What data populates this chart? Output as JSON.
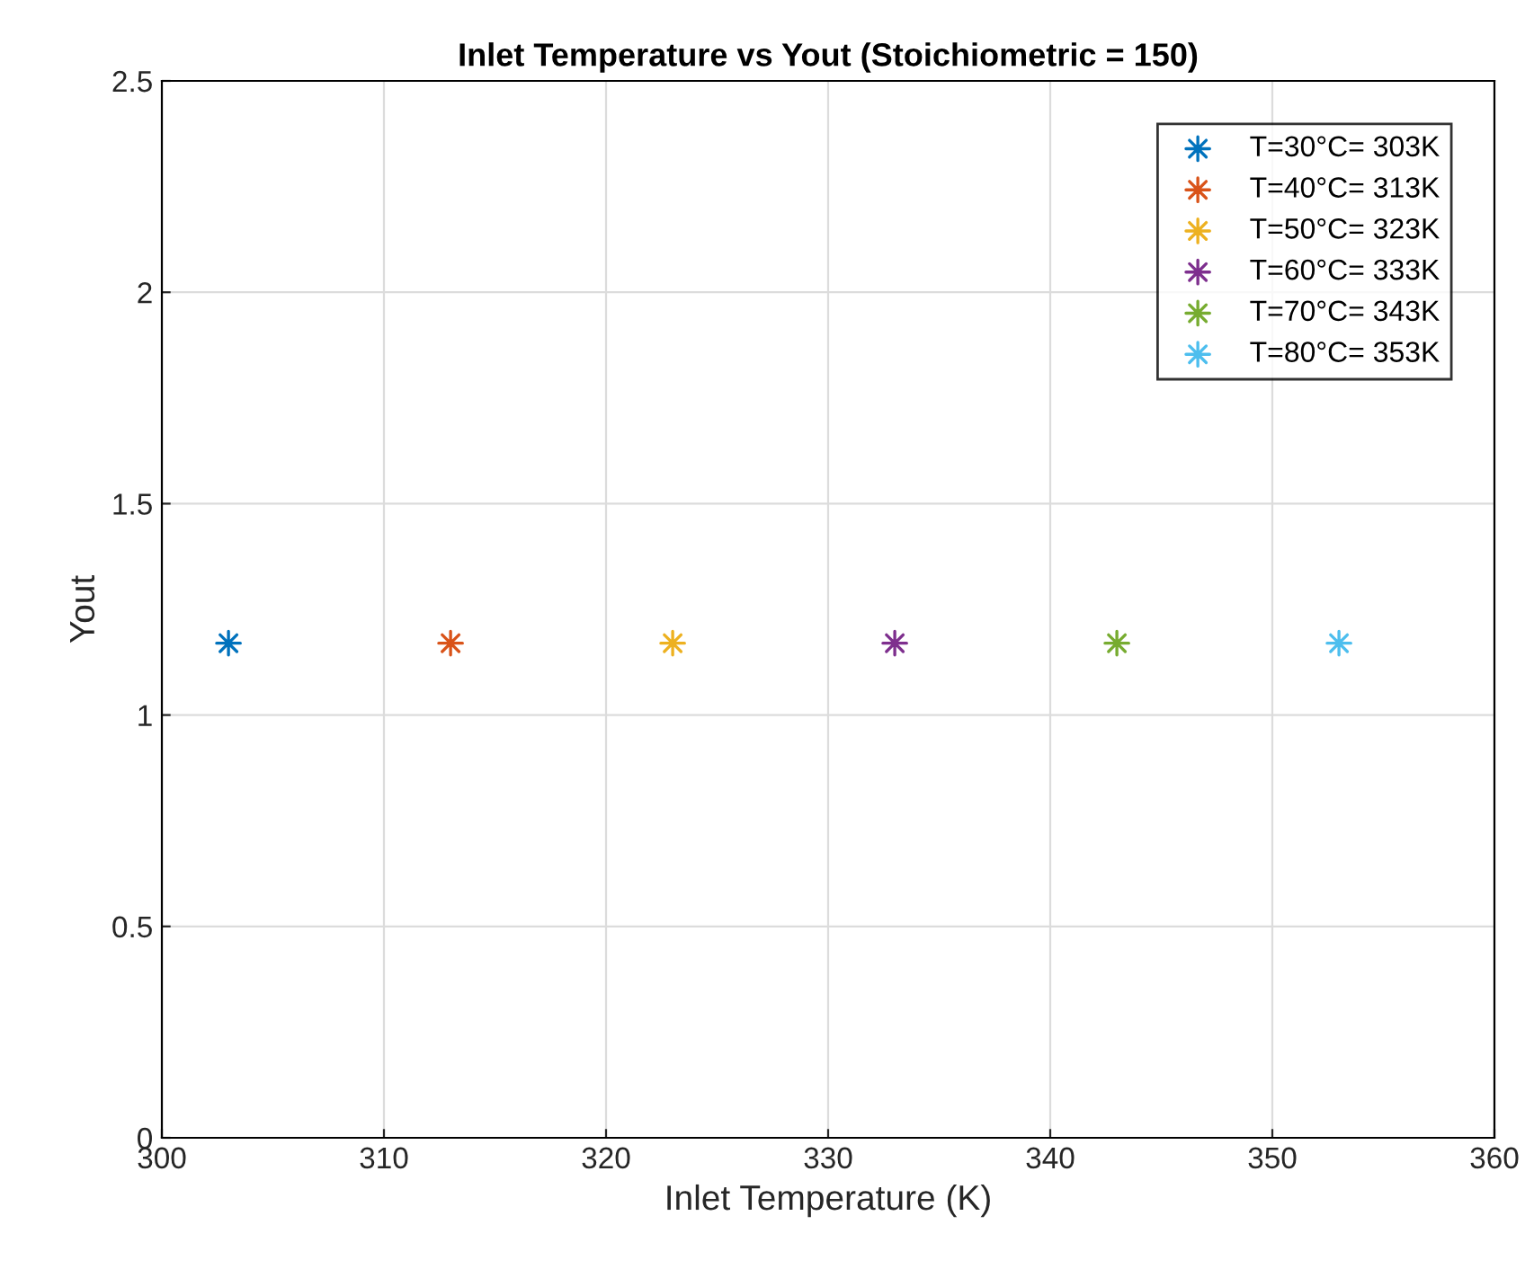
{
  "chart_data": {
    "type": "scatter",
    "title": "Inlet Temperature vs Yout (Stoichiometric = 150)",
    "xlabel": "Inlet Temperature (K)",
    "ylabel": "Yout",
    "series": [
      {
        "name": "T=30°C= 303K",
        "color": "#0072bd",
        "x": [
          303
        ],
        "values": [
          1.17
        ]
      },
      {
        "name": "T=40°C= 313K",
        "color": "#d95319",
        "x": [
          313
        ],
        "values": [
          1.17
        ]
      },
      {
        "name": "T=50°C= 323K",
        "color": "#edb120",
        "x": [
          323
        ],
        "values": [
          1.17
        ]
      },
      {
        "name": "T=60°C= 333K",
        "color": "#7e2f8e",
        "x": [
          333
        ],
        "values": [
          1.17
        ]
      },
      {
        "name": "T=70°C= 343K",
        "color": "#77ac30",
        "x": [
          343
        ],
        "values": [
          1.17
        ]
      },
      {
        "name": "T=80°C= 353K",
        "color": "#4dbeee",
        "x": [
          353
        ],
        "values": [
          1.17
        ]
      }
    ],
    "xlim": [
      300,
      360
    ],
    "xticks": [
      300,
      310,
      320,
      330,
      340,
      350,
      360
    ],
    "ylim": [
      0,
      2.5
    ],
    "yticks": [
      0,
      0.5,
      1,
      1.5,
      2,
      2.5
    ],
    "grid": true,
    "legend": "top right",
    "marker": "star"
  }
}
